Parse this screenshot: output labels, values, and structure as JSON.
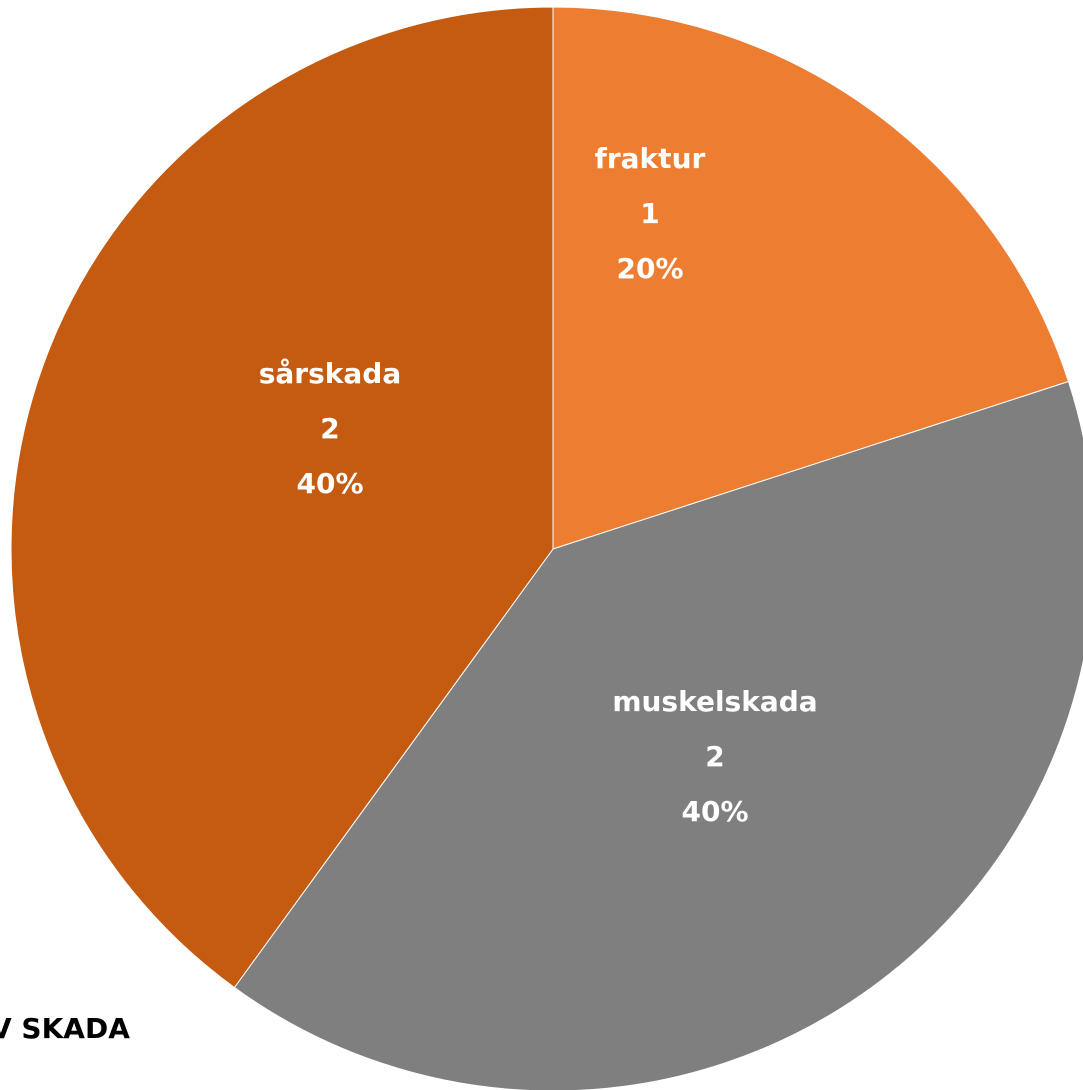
{
  "chart_data": {
    "type": "pie",
    "title": "V SKADA",
    "categories": [
      "fraktur",
      "muskelskada",
      "sårskada"
    ],
    "values": [
      1,
      2,
      2
    ],
    "percent_labels": [
      "20%",
      "40%",
      "40%"
    ],
    "colors": [
      "#ED7D31",
      "#7F7F7F",
      "#C55A11"
    ]
  }
}
